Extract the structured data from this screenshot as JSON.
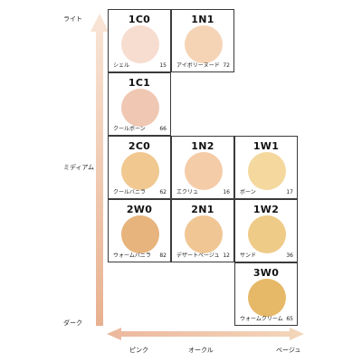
{
  "axis": {
    "vertical": {
      "top": "ライト",
      "middle": "ミディアム",
      "bottom": "ダーク"
    },
    "horizontal": {
      "left": "ピンク",
      "middle": "オークル",
      "right": "ベージュ"
    }
  },
  "shades": [
    {
      "code": "1C0",
      "name": "シェル",
      "number": "15",
      "color": "#f7dcd0"
    },
    {
      "code": "1N1",
      "name": "アイボリーヌード",
      "number": "72",
      "color": "#f5d4b6"
    },
    {
      "code": "1C1",
      "name": "クールボーン",
      "number": "66",
      "color": "#efc7b2"
    },
    {
      "code": "2C0",
      "name": "クールバニラ",
      "number": "62",
      "color": "#f0c890"
    },
    {
      "code": "1N2",
      "name": "エクリュ",
      "number": "16",
      "color": "#f5cca8"
    },
    {
      "code": "1W1",
      "name": "ボーン",
      "number": "17",
      "color": "#f4d89e"
    },
    {
      "code": "2W0",
      "name": "ウォームバニラ",
      "number": "82",
      "color": "#e6b47c"
    },
    {
      "code": "2N1",
      "name": "デザートベージュ",
      "number": "12",
      "color": "#f0c694"
    },
    {
      "code": "1W2",
      "name": "サンド",
      "number": "36",
      "color": "#efcb88"
    },
    {
      "code": "3W0",
      "name": "ウォームクリーム",
      "number": "65",
      "color": "#e6b968"
    }
  ],
  "colors": {
    "arrow": "#eab89b",
    "arrow_light": "#f6dcc6",
    "border": "#3a3a3a"
  }
}
